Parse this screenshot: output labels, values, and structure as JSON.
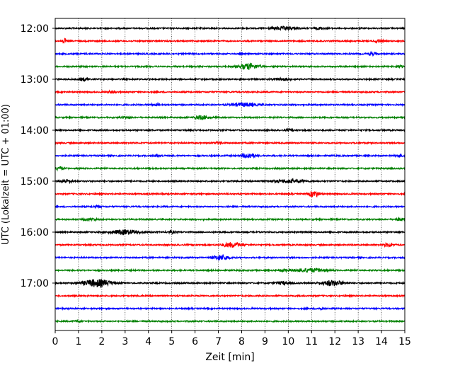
{
  "chart_data": {
    "type": "line",
    "title": "",
    "xlabel": "Zeit  [min]",
    "ylabel": "UTC (Lokalzeit = UTC + 01:00)",
    "xlim": [
      0,
      15
    ],
    "x_ticks": [
      0,
      1,
      2,
      3,
      4,
      5,
      6,
      7,
      8,
      9,
      10,
      11,
      12,
      13,
      14,
      15
    ],
    "x_tick_labels": [
      "0",
      "1",
      "2",
      "3",
      "4",
      "5",
      "6",
      "7",
      "8",
      "9",
      "10",
      "11",
      "12",
      "13",
      "14",
      "15"
    ],
    "y_ticks_hours": [
      0,
      1,
      2,
      3,
      4,
      5
    ],
    "y_tick_labels": [
      "12:00",
      "13:00",
      "14:00",
      "15:00",
      "16:00",
      "17:00"
    ],
    "rows_per_hour": 4,
    "row_minutes": 15,
    "grid": "vertical dotted",
    "trace_colors": [
      "#000000",
      "#ff0000",
      "#0000ff",
      "#008000"
    ],
    "series": [
      {
        "start": "12:00",
        "color": "#000000",
        "bursts": [
          {
            "t": 9.8,
            "amp": 2.0,
            "dur": 1.0
          },
          {
            "t": 11.4,
            "amp": 1.3,
            "dur": 0.4
          }
        ]
      },
      {
        "start": "12:15",
        "color": "#ff0000",
        "bursts": [
          {
            "t": 0.4,
            "amp": 3.2,
            "dur": 0.12
          },
          {
            "t": 13.9,
            "amp": 2.0,
            "dur": 0.3
          }
        ]
      },
      {
        "start": "12:30",
        "color": "#0000ff",
        "bursts": [
          {
            "t": 13.6,
            "amp": 1.8,
            "dur": 0.3
          }
        ]
      },
      {
        "start": "12:45",
        "color": "#008000",
        "bursts": [
          {
            "t": 8.3,
            "amp": 3.8,
            "dur": 0.8
          },
          {
            "t": 14.8,
            "amp": 1.5,
            "dur": 0.2
          }
        ]
      },
      {
        "start": "13:00",
        "color": "#000000",
        "bursts": [
          {
            "t": 1.2,
            "amp": 2.0,
            "dur": 0.3
          },
          {
            "t": 9.8,
            "amp": 1.3,
            "dur": 0.5
          }
        ]
      },
      {
        "start": "13:15",
        "color": "#ff0000",
        "bursts": [
          {
            "t": 2.4,
            "amp": 1.3,
            "dur": 0.3
          }
        ]
      },
      {
        "start": "13:30",
        "color": "#0000ff",
        "bursts": [
          {
            "t": 8.1,
            "amp": 2.5,
            "dur": 1.0
          },
          {
            "t": 4.3,
            "amp": 1.2,
            "dur": 0.3
          }
        ]
      },
      {
        "start": "13:45",
        "color": "#008000",
        "bursts": [
          {
            "t": 6.3,
            "amp": 2.5,
            "dur": 0.6
          },
          {
            "t": 3.0,
            "amp": 1.0,
            "dur": 0.4
          }
        ]
      },
      {
        "start": "14:00",
        "color": "#000000",
        "bursts": [
          {
            "t": 10.1,
            "amp": 1.3,
            "dur": 0.3
          }
        ]
      },
      {
        "start": "14:15",
        "color": "#ff0000",
        "bursts": [
          {
            "t": 7.0,
            "amp": 1.3,
            "dur": 0.3
          }
        ]
      },
      {
        "start": "14:30",
        "color": "#0000ff",
        "bursts": [
          {
            "t": 8.3,
            "amp": 3.5,
            "dur": 0.5
          },
          {
            "t": 4.4,
            "amp": 1.6,
            "dur": 0.3
          },
          {
            "t": 14.8,
            "amp": 2.0,
            "dur": 0.3
          }
        ]
      },
      {
        "start": "14:45",
        "color": "#008000",
        "bursts": [
          {
            "t": 0.2,
            "amp": 2.5,
            "dur": 0.3
          }
        ]
      },
      {
        "start": "15:00",
        "color": "#000000",
        "bursts": [
          {
            "t": 0.5,
            "amp": 2.2,
            "dur": 0.4
          },
          {
            "t": 10.0,
            "amp": 2.0,
            "dur": 1.4
          }
        ]
      },
      {
        "start": "15:15",
        "color": "#ff0000",
        "bursts": [
          {
            "t": 11.1,
            "amp": 4.2,
            "dur": 0.4
          }
        ]
      },
      {
        "start": "15:30",
        "color": "#0000ff",
        "bursts": [
          {
            "t": 1.8,
            "amp": 1.3,
            "dur": 0.3
          }
        ]
      },
      {
        "start": "15:45",
        "color": "#008000",
        "bursts": [
          {
            "t": 1.5,
            "amp": 1.5,
            "dur": 0.5
          },
          {
            "t": 14.8,
            "amp": 1.5,
            "dur": 0.3
          }
        ]
      },
      {
        "start": "16:00",
        "color": "#000000",
        "bursts": [
          {
            "t": 3.0,
            "amp": 3.0,
            "dur": 1.2
          },
          {
            "t": 5.0,
            "amp": 1.5,
            "dur": 0.3
          }
        ]
      },
      {
        "start": "16:15",
        "color": "#ff0000",
        "bursts": [
          {
            "t": 7.6,
            "amp": 3.2,
            "dur": 0.8
          },
          {
            "t": 14.3,
            "amp": 2.2,
            "dur": 0.4
          }
        ]
      },
      {
        "start": "16:30",
        "color": "#0000ff",
        "bursts": [
          {
            "t": 7.1,
            "amp": 3.5,
            "dur": 0.6
          }
        ]
      },
      {
        "start": "16:45",
        "color": "#008000",
        "bursts": [
          {
            "t": 10.9,
            "amp": 2.5,
            "dur": 1.2
          },
          {
            "t": 9.8,
            "amp": 1.5,
            "dur": 0.3
          }
        ]
      },
      {
        "start": "17:00",
        "color": "#000000",
        "bursts": [
          {
            "t": 1.8,
            "amp": 5.0,
            "dur": 1.2
          },
          {
            "t": 11.9,
            "amp": 3.5,
            "dur": 0.9
          },
          {
            "t": 9.8,
            "amp": 2.0,
            "dur": 0.6
          }
        ]
      },
      {
        "start": "17:15",
        "color": "#ff0000",
        "bursts": []
      },
      {
        "start": "17:30",
        "color": "#0000ff",
        "bursts": [
          {
            "t": 11.4,
            "amp": 1.2,
            "dur": 0.3
          }
        ]
      },
      {
        "start": "17:45",
        "color": "#008000",
        "bursts": [
          {
            "t": 1.0,
            "amp": 1.0,
            "dur": 0.3
          }
        ]
      }
    ]
  }
}
